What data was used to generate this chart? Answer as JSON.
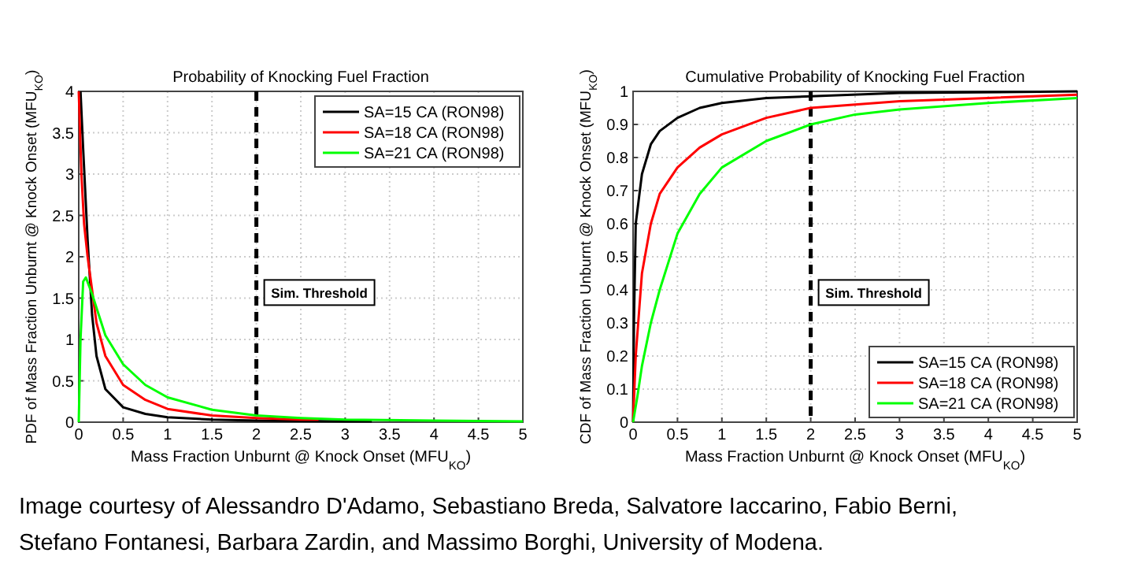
{
  "chart_data": [
    {
      "type": "line",
      "title": "Probability of Knocking Fuel Fraction",
      "xlabel": "Mass Fraction Unburnt @ Knock Onset (MFU$_{KO}$)",
      "ylabel": "PDF of Mass Fraction Unburnt @ Knock Onset (MFU$_{KO}$)",
      "xlim": [
        0,
        5
      ],
      "ylim": [
        0,
        4
      ],
      "xticks": [
        0,
        0.5,
        1,
        1.5,
        2,
        2.5,
        3,
        3.5,
        4,
        4.5,
        5
      ],
      "yticks": [
        0,
        0.5,
        1,
        1.5,
        2,
        2.5,
        3,
        3.5,
        4
      ],
      "grid": true,
      "legend": "top right",
      "line_style": "solid",
      "marker": "none",
      "series": [
        {
          "name": "SA=15 CA (RON98)",
          "color": "#000000",
          "x": [
            0.02,
            0.05,
            0.1,
            0.15,
            0.2,
            0.3,
            0.5,
            0.75,
            1,
            1.5,
            2,
            3,
            3.3
          ],
          "values": [
            4,
            3.3,
            2.2,
            1.3,
            0.8,
            0.4,
            0.18,
            0.1,
            0.06,
            0.03,
            0.02,
            0.01,
            0.01
          ]
        },
        {
          "name": "SA=18 CA (RON98)",
          "color": "#ff0000",
          "x": [
            0,
            0.03,
            0.06,
            0.1,
            0.2,
            0.3,
            0.5,
            0.75,
            1,
            1.5,
            2,
            2.5,
            2.7
          ],
          "values": [
            4,
            3,
            2.4,
            2,
            1.2,
            0.8,
            0.45,
            0.27,
            0.16,
            0.08,
            0.05,
            0.03,
            0.03
          ]
        },
        {
          "name": "SA=21 CA (RON98)",
          "color": "#00ff00",
          "x": [
            0,
            0.02,
            0.05,
            0.08,
            0.15,
            0.3,
            0.5,
            0.75,
            1,
            1.5,
            2,
            2.5,
            3,
            4,
            5
          ],
          "values": [
            0,
            1,
            1.7,
            1.75,
            1.55,
            1.05,
            0.7,
            0.45,
            0.3,
            0.15,
            0.08,
            0.05,
            0.03,
            0.02,
            0.01
          ]
        }
      ],
      "ref_lines": [
        {
          "axis": "x",
          "value": 2,
          "label": "Sim. Threshold",
          "color": "#000000",
          "line_style": "dashed"
        }
      ],
      "annotations": [
        "Image courtesy of Alessandro D'Adamo, Sebastiano Breda, Salvatore Iaccarino, Fabio Berni, Stefano Fontanesi, Barbara Zardin, and Massimo Borghi, University of Modena."
      ]
    },
    {
      "type": "line",
      "title": "Cumulative Probability of Knocking Fuel Fraction",
      "xlabel": "Mass Fraction Unburnt @ Knock Onset (MFU$_{KO}$)",
      "ylabel": "CDF of Mass Fraction Unburnt @ Knock Onset (MFU$_{KO}$)",
      "xlim": [
        0,
        5
      ],
      "ylim": [
        0,
        1
      ],
      "xticks": [
        0,
        0.5,
        1,
        1.5,
        2,
        2.5,
        3,
        3.5,
        4,
        4.5,
        5
      ],
      "yticks": [
        0,
        0.1,
        0.2,
        0.3,
        0.4,
        0.5,
        0.6,
        0.7,
        0.8,
        0.9,
        1
      ],
      "grid": true,
      "legend": "bottom right",
      "line_style": "solid",
      "marker": "none",
      "series": [
        {
          "name": "SA=15 CA (RON98)",
          "color": "#000000",
          "x": [
            0,
            0.01,
            0.03,
            0.1,
            0.2,
            0.3,
            0.5,
            0.75,
            1,
            1.5,
            2,
            3,
            5
          ],
          "values": [
            0,
            0.3,
            0.6,
            0.75,
            0.84,
            0.88,
            0.92,
            0.95,
            0.965,
            0.98,
            0.985,
            0.995,
            1
          ]
        },
        {
          "name": "SA=18 CA (RON98)",
          "color": "#ff0000",
          "x": [
            0,
            0.03,
            0.1,
            0.2,
            0.3,
            0.5,
            0.75,
            1,
            1.5,
            2,
            3,
            4,
            5
          ],
          "values": [
            0,
            0.2,
            0.45,
            0.6,
            0.69,
            0.77,
            0.83,
            0.87,
            0.92,
            0.95,
            0.97,
            0.98,
            0.99
          ]
        },
        {
          "name": "SA=21 CA (RON98)",
          "color": "#00ff00",
          "x": [
            0,
            0.05,
            0.1,
            0.2,
            0.3,
            0.5,
            0.75,
            1,
            1.5,
            2,
            2.5,
            3,
            4,
            5
          ],
          "values": [
            0,
            0.08,
            0.17,
            0.3,
            0.4,
            0.57,
            0.69,
            0.77,
            0.85,
            0.9,
            0.93,
            0.945,
            0.965,
            0.98
          ]
        }
      ],
      "ref_lines": [
        {
          "axis": "x",
          "value": 2,
          "label": "Sim. Threshold",
          "color": "#000000",
          "line_style": "dashed"
        }
      ]
    }
  ]
}
